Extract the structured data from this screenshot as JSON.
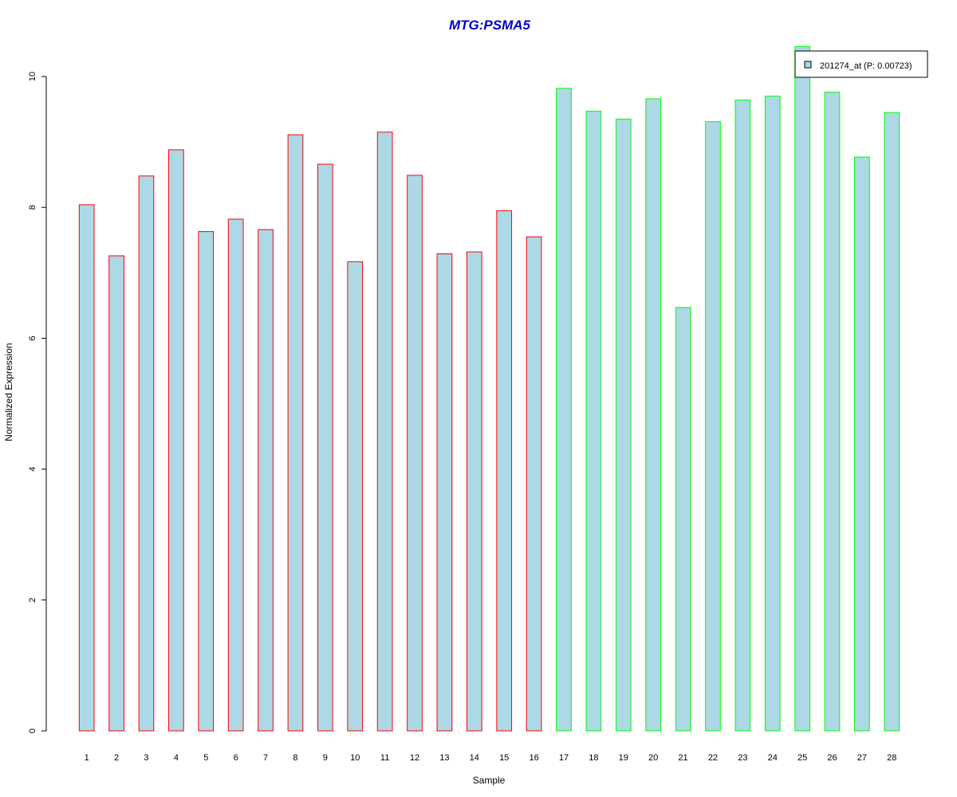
{
  "chart_data": {
    "type": "bar",
    "title": "MTG:PSMA5",
    "xlabel": "Sample",
    "ylabel": "Normalized Expression",
    "ylim": [
      0,
      10.45
    ],
    "yticks": [
      0,
      2,
      4,
      6,
      8,
      10
    ],
    "categories": [
      "1",
      "2",
      "3",
      "4",
      "5",
      "6",
      "7",
      "8",
      "9",
      "10",
      "11",
      "12",
      "13",
      "14",
      "15",
      "16",
      "17",
      "18",
      "19",
      "20",
      "21",
      "22",
      "23",
      "24",
      "25",
      "26",
      "27",
      "28"
    ],
    "series": [
      {
        "name": "201274_at (P: 0.00723)",
        "values": [
          8.04,
          7.26,
          8.48,
          8.88,
          7.63,
          7.82,
          7.66,
          9.11,
          8.66,
          7.17,
          9.15,
          8.49,
          7.29,
          7.32,
          7.95,
          7.55,
          9.82,
          9.47,
          9.35,
          9.66,
          6.47,
          9.31,
          9.64,
          9.7,
          10.46,
          9.76,
          8.77,
          9.45
        ]
      }
    ],
    "groups": [
      {
        "from": 1,
        "to": 16,
        "border_color": "#ff0000"
      },
      {
        "from": 17,
        "to": 28,
        "border_color": "#00ff00"
      }
    ],
    "legend_position": "top-right",
    "grid": false,
    "colors": {
      "bar_fill": "#add8e6",
      "title": "#0000cc"
    }
  }
}
